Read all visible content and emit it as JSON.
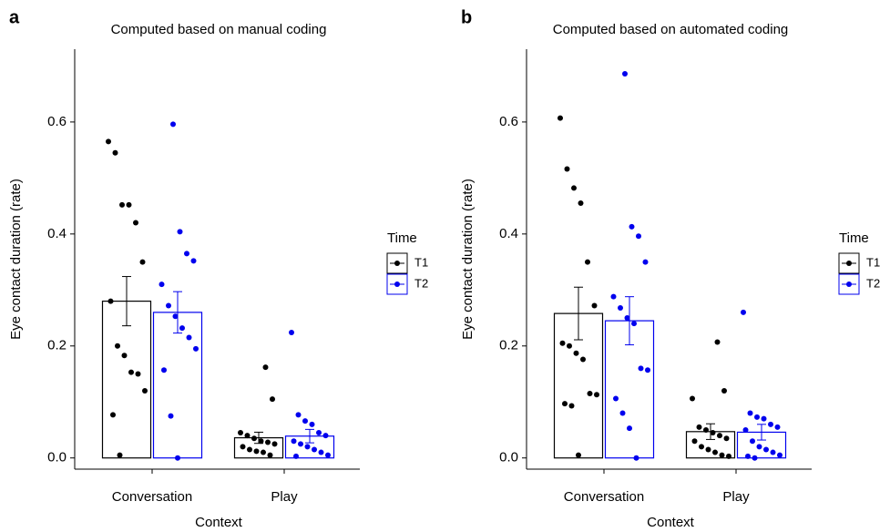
{
  "chart_data": [
    {
      "type": "bar",
      "panel_label": "a",
      "title": "Computed based on manual coding",
      "xlabel": "Context",
      "ylabel": "Eye contact duration (rate)",
      "categories": [
        "Conversation",
        "Play"
      ],
      "legend_title": "Time",
      "ylim": [
        -0.02,
        0.73
      ],
      "yticks": [
        {
          "value": 0,
          "label": "0.0"
        },
        0.2,
        0.4,
        0.6
      ],
      "series": [
        {
          "name": "T1",
          "color": "#000000",
          "values": [
            0.28,
            0.036
          ],
          "errors": [
            0.044,
            0.01
          ],
          "points": [
            [
              0.565,
              0.545,
              0.452,
              0.452,
              0.42,
              0.35,
              0.28,
              0.2,
              0.183,
              0.153,
              0.15,
              0.12,
              0.077,
              0.005
            ],
            [
              0.162,
              0.105,
              0.045,
              0.04,
              0.035,
              0.03,
              0.028,
              0.025,
              0.02,
              0.015,
              0.012,
              0.01,
              0.005
            ]
          ]
        },
        {
          "name": "T2",
          "color": "#0000ee",
          "values": [
            0.26,
            0.039
          ],
          "errors": [
            0.037,
            0.012
          ],
          "points": [
            [
              0.596,
              0.404,
              0.365,
              0.352,
              0.31,
              0.272,
              0.253,
              0.232,
              0.215,
              0.195,
              0.157,
              0.075,
              0.0
            ],
            [
              0.224,
              0.077,
              0.066,
              0.06,
              0.045,
              0.04,
              0.03,
              0.025,
              0.02,
              0.015,
              0.01,
              0.005,
              0.003
            ]
          ]
        }
      ]
    },
    {
      "type": "bar",
      "panel_label": "b",
      "title": "Computed based on automated coding",
      "xlabel": "Context",
      "ylabel": "Eye contact duration (rate)",
      "categories": [
        "Conversation",
        "Play"
      ],
      "legend_title": "Time",
      "ylim": [
        -0.02,
        0.73
      ],
      "yticks": [
        {
          "value": 0,
          "label": "0.0"
        },
        0.2,
        0.4,
        0.6
      ],
      "series": [
        {
          "name": "T1",
          "color": "#000000",
          "values": [
            0.258,
            0.047
          ],
          "errors": [
            0.047,
            0.014
          ],
          "points": [
            [
              0.607,
              0.516,
              0.482,
              0.455,
              0.35,
              0.272,
              0.205,
              0.2,
              0.187,
              0.176,
              0.115,
              0.113,
              0.097,
              0.093,
              0.005
            ],
            [
              0.207,
              0.12,
              0.106,
              0.055,
              0.05,
              0.045,
              0.04,
              0.035,
              0.03,
              0.02,
              0.015,
              0.01,
              0.005,
              0.003
            ]
          ]
        },
        {
          "name": "T2",
          "color": "#0000ee",
          "values": [
            0.245,
            0.046
          ],
          "errors": [
            0.043,
            0.014
          ],
          "points": [
            [
              0.686,
              0.413,
              0.396,
              0.35,
              0.288,
              0.268,
              0.25,
              0.24,
              0.16,
              0.157,
              0.106,
              0.08,
              0.053,
              0.0
            ],
            [
              0.26,
              0.08,
              0.073,
              0.07,
              0.06,
              0.055,
              0.05,
              0.03,
              0.02,
              0.015,
              0.01,
              0.005,
              0.003,
              0.0
            ]
          ]
        }
      ]
    }
  ]
}
